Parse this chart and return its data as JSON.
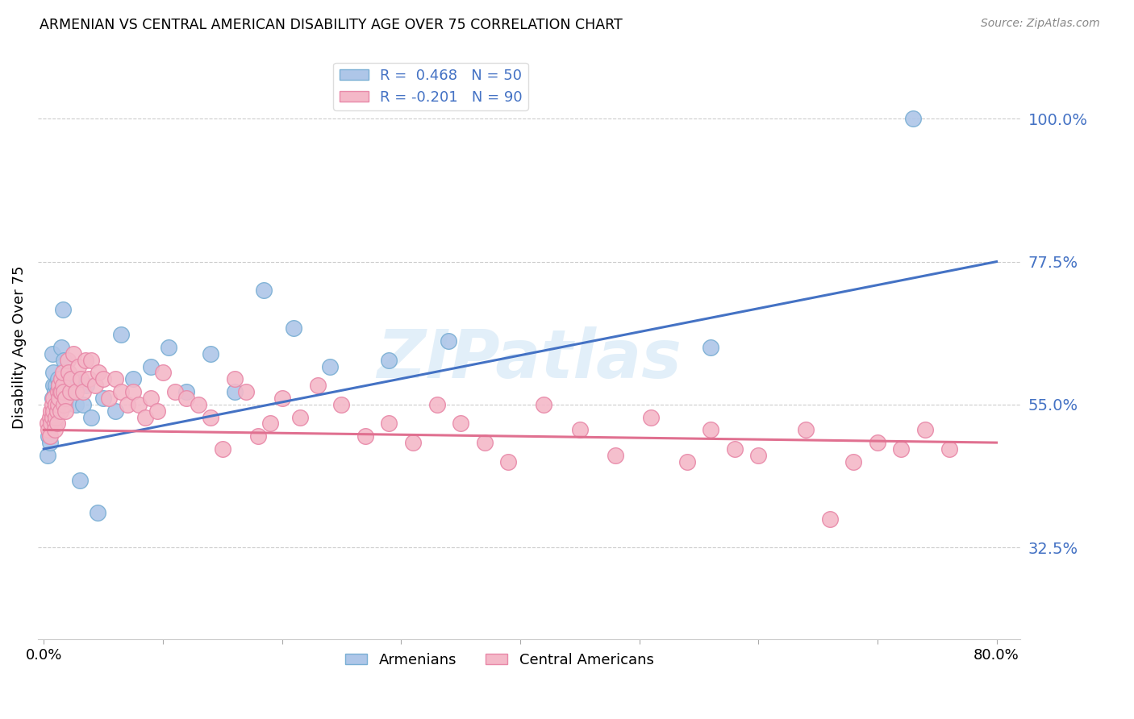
{
  "title": "ARMENIAN VS CENTRAL AMERICAN DISABILITY AGE OVER 75 CORRELATION CHART",
  "source": "Source: ZipAtlas.com",
  "ylabel": "Disability Age Over 75",
  "ytick_labels": [
    "32.5%",
    "55.0%",
    "77.5%",
    "100.0%"
  ],
  "ytick_values": [
    0.325,
    0.55,
    0.775,
    1.0
  ],
  "xlim": [
    -0.005,
    0.82
  ],
  "ylim": [
    0.18,
    1.1
  ],
  "armenian_R": 0.468,
  "armenian_N": 50,
  "central_R": -0.201,
  "central_N": 90,
  "armenian_color": "#aec6e8",
  "armenian_edge": "#7aafd4",
  "central_color": "#f4b8c8",
  "central_edge": "#e888a8",
  "blue_line_color": "#4472c4",
  "pink_line_color": "#e07090",
  "legend_label_armenian": "Armenians",
  "legend_label_central": "Central Americans",
  "watermark": "ZIPatlas",
  "blue_line_y0": 0.48,
  "blue_line_y1": 0.775,
  "pink_line_y0": 0.51,
  "pink_line_y1": 0.49,
  "armenian_x": [
    0.003,
    0.004,
    0.005,
    0.006,
    0.007,
    0.007,
    0.008,
    0.008,
    0.009,
    0.009,
    0.01,
    0.01,
    0.011,
    0.011,
    0.012,
    0.012,
    0.013,
    0.013,
    0.014,
    0.014,
    0.015,
    0.016,
    0.017,
    0.018,
    0.019,
    0.02,
    0.022,
    0.025,
    0.027,
    0.03,
    0.033,
    0.036,
    0.04,
    0.045,
    0.05,
    0.06,
    0.065,
    0.075,
    0.09,
    0.105,
    0.12,
    0.14,
    0.16,
    0.185,
    0.21,
    0.24,
    0.29,
    0.34,
    0.56,
    0.73
  ],
  "armenian_y": [
    0.47,
    0.5,
    0.49,
    0.52,
    0.63,
    0.56,
    0.58,
    0.6,
    0.57,
    0.55,
    0.56,
    0.58,
    0.55,
    0.57,
    0.56,
    0.59,
    0.57,
    0.58,
    0.56,
    0.55,
    0.64,
    0.7,
    0.62,
    0.55,
    0.59,
    0.58,
    0.57,
    0.59,
    0.55,
    0.43,
    0.55,
    0.58,
    0.53,
    0.38,
    0.56,
    0.54,
    0.66,
    0.59,
    0.61,
    0.64,
    0.57,
    0.63,
    0.57,
    0.73,
    0.67,
    0.61,
    0.62,
    0.65,
    0.64,
    1.0
  ],
  "central_x": [
    0.003,
    0.004,
    0.005,
    0.005,
    0.006,
    0.006,
    0.007,
    0.007,
    0.008,
    0.008,
    0.009,
    0.009,
    0.01,
    0.01,
    0.011,
    0.011,
    0.012,
    0.012,
    0.013,
    0.013,
    0.014,
    0.014,
    0.015,
    0.015,
    0.016,
    0.016,
    0.017,
    0.017,
    0.018,
    0.018,
    0.02,
    0.021,
    0.022,
    0.023,
    0.025,
    0.027,
    0.029,
    0.031,
    0.033,
    0.035,
    0.038,
    0.04,
    0.043,
    0.046,
    0.05,
    0.055,
    0.06,
    0.065,
    0.07,
    0.075,
    0.08,
    0.085,
    0.09,
    0.095,
    0.1,
    0.11,
    0.12,
    0.13,
    0.14,
    0.15,
    0.16,
    0.17,
    0.18,
    0.19,
    0.2,
    0.215,
    0.23,
    0.25,
    0.27,
    0.29,
    0.31,
    0.33,
    0.35,
    0.37,
    0.39,
    0.42,
    0.45,
    0.48,
    0.51,
    0.54,
    0.56,
    0.58,
    0.6,
    0.64,
    0.66,
    0.68,
    0.7,
    0.72,
    0.74,
    0.76
  ],
  "central_y": [
    0.52,
    0.51,
    0.53,
    0.5,
    0.54,
    0.52,
    0.55,
    0.53,
    0.54,
    0.56,
    0.52,
    0.51,
    0.53,
    0.55,
    0.54,
    0.52,
    0.57,
    0.55,
    0.58,
    0.56,
    0.54,
    0.57,
    0.59,
    0.57,
    0.58,
    0.6,
    0.55,
    0.57,
    0.56,
    0.54,
    0.62,
    0.6,
    0.57,
    0.59,
    0.63,
    0.57,
    0.61,
    0.59,
    0.57,
    0.62,
    0.59,
    0.62,
    0.58,
    0.6,
    0.59,
    0.56,
    0.59,
    0.57,
    0.55,
    0.57,
    0.55,
    0.53,
    0.56,
    0.54,
    0.6,
    0.57,
    0.56,
    0.55,
    0.53,
    0.48,
    0.59,
    0.57,
    0.5,
    0.52,
    0.56,
    0.53,
    0.58,
    0.55,
    0.5,
    0.52,
    0.49,
    0.55,
    0.52,
    0.49,
    0.46,
    0.55,
    0.51,
    0.47,
    0.53,
    0.46,
    0.51,
    0.48,
    0.47,
    0.51,
    0.37,
    0.46,
    0.49,
    0.48,
    0.51,
    0.48
  ]
}
